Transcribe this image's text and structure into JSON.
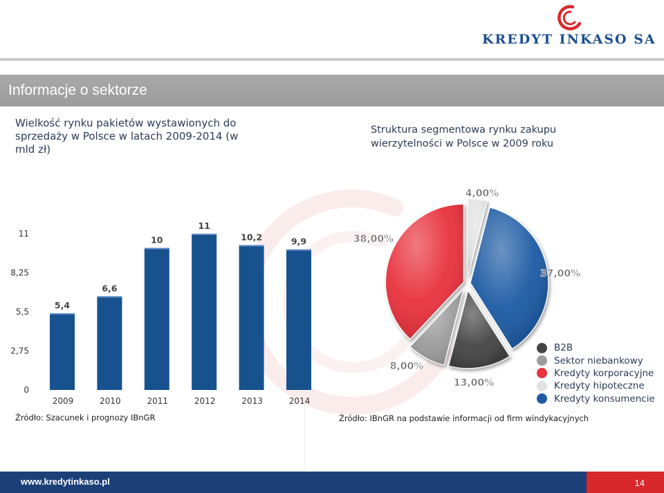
{
  "header": {
    "logo_text": "KREDYT INKASO SA",
    "banner_title": "Informacje o sektorze"
  },
  "colors": {
    "brand_blue": "#1c3f78",
    "brand_red": "#d9282b",
    "banner_grey": "#a3a3a3"
  },
  "left_panel": {
    "title": "Wielkość rynku pakietów wystawionych do sprzedaży w Polsce w latach 2009-2014 (w mld zł)",
    "source": "Źródło: Szacunek i prognozy IBnGR"
  },
  "right_panel": {
    "title": "Struktura segmentowa rynku zakupu wierzytelności w Polsce w 2009 roku",
    "source": "Źródło: IBnGR na podstawie informacji od firm windykacyjnych"
  },
  "chart_data": [
    {
      "type": "bar",
      "categories": [
        "2009",
        "2010",
        "2011",
        "2012",
        "2013",
        "2014"
      ],
      "values": [
        5.4,
        6.6,
        10,
        11,
        10.2,
        9.9
      ],
      "data_labels": [
        "5,4",
        "6,6",
        "10",
        "11",
        "10,2",
        "9,9"
      ],
      "y_ticks": [
        "0",
        "2,75",
        "5,5",
        "8,25",
        "11"
      ],
      "ylim": [
        0,
        11
      ],
      "grid": false,
      "color": "#17528f"
    },
    {
      "type": "pie",
      "labels": [
        "Kredyty hipoteczne",
        "Kredyty konsumencie",
        "B2B",
        "Sektor niebankowy",
        "Kredyty korporacyjne"
      ],
      "values": [
        4,
        37,
        13,
        8,
        38
      ],
      "data_labels": [
        "4,00%",
        "37,00%",
        "13,00%",
        "8,00%",
        "38,00%"
      ],
      "colors": [
        "#e2e2e2",
        "#1f5aa3",
        "#444444",
        "#9c9c9c",
        "#e8323e"
      ],
      "legend_position": "right",
      "legend": [
        {
          "label": "B2B",
          "color": "#444444"
        },
        {
          "label": "Sektor niebankowy",
          "color": "#9c9c9c"
        },
        {
          "label": "Kredyty korporacyjne",
          "color": "#e8323e"
        },
        {
          "label": "Kredyty hipoteczne",
          "color": "#e2e2e2"
        },
        {
          "label": "Kredyty konsumencie",
          "color": "#1f5aa3"
        }
      ]
    }
  ],
  "footer": {
    "url": "www.kredytinkaso.pl",
    "page_number": "14"
  }
}
